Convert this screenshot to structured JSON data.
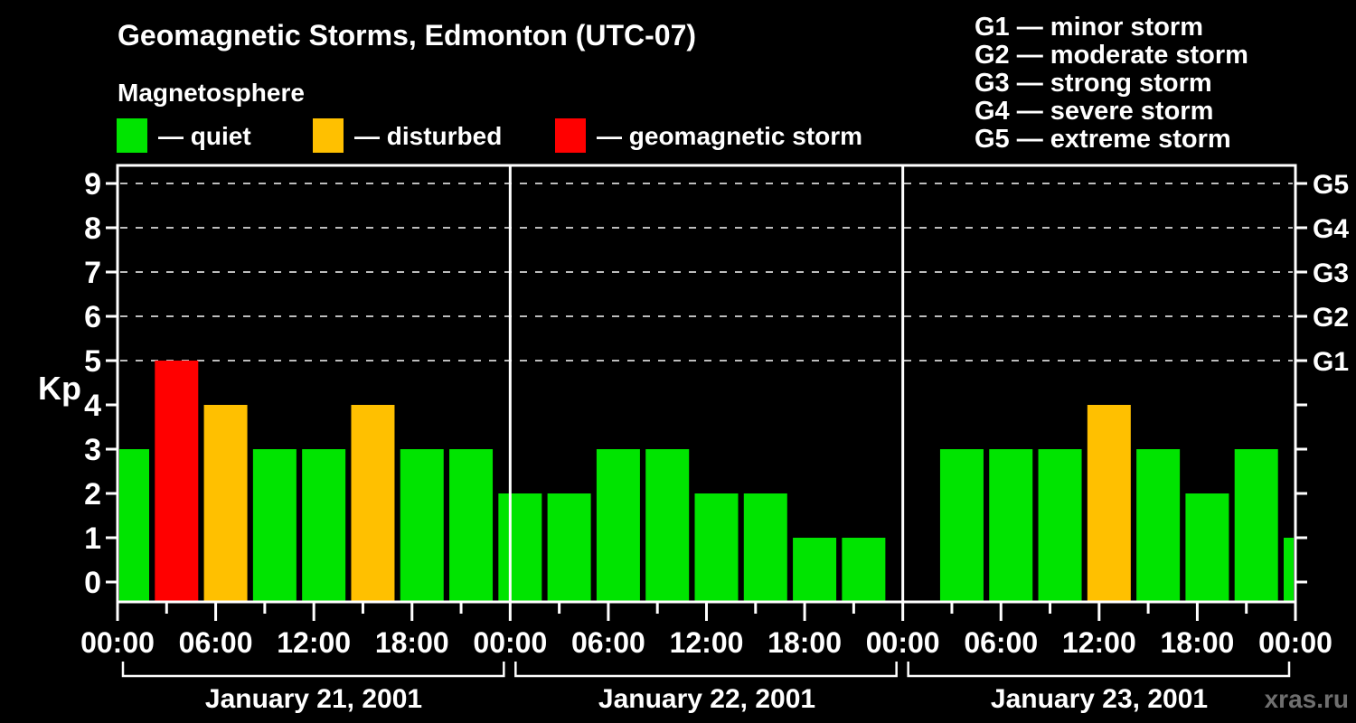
{
  "chart_data": {
    "type": "bar",
    "title": "Geomagnetic Storms, Edmonton (UTC-07)",
    "subtitle": "Magnetosphere",
    "y_axis_label": "Kp",
    "watermark": "xras.ru",
    "ylim": [
      0,
      9.5
    ],
    "y_ticks": [
      0,
      1,
      2,
      3,
      4,
      5,
      6,
      7,
      8,
      9
    ],
    "x_total_hours": 72,
    "x_tick_step_hours": 3,
    "x_label_step_hours": 6,
    "time_label_cycle": [
      "00:00",
      "06:00",
      "12:00",
      "18:00"
    ],
    "final_time_label": "00:00",
    "grid": "dashed horizontal lines at Kp 5-9",
    "legend": {
      "items": [
        {
          "label": "— quiet",
          "status": "quiet",
          "color": "#00e400"
        },
        {
          "label": "— disturbed",
          "status": "disturbed",
          "color": "#ffc000"
        },
        {
          "label": "— geomagnetic storm",
          "status": "storm",
          "color": "#ff0000"
        }
      ]
    },
    "g_scale_legend": [
      "G1 — minor storm",
      "G2 — moderate storm",
      "G3 — strong storm",
      "G4 — severe storm",
      "G5 — extreme storm"
    ],
    "g_levels": [
      {
        "kp": 5,
        "label": "G1"
      },
      {
        "kp": 6,
        "label": "G2"
      },
      {
        "kp": 7,
        "label": "G3"
      },
      {
        "kp": 8,
        "label": "G4"
      },
      {
        "kp": 9,
        "label": "G5"
      }
    ],
    "days": [
      {
        "label": "January 21, 2001",
        "start_hour": 0,
        "end_hour": 24
      },
      {
        "label": "January 22, 2001",
        "start_hour": 24,
        "end_hour": 48
      },
      {
        "label": "January 23, 2001",
        "start_hour": 48,
        "end_hour": 72
      }
    ],
    "points": [
      {
        "hour": 0,
        "kp": 3,
        "status": "quiet"
      },
      {
        "hour": 3,
        "kp": 5,
        "status": "storm"
      },
      {
        "hour": 6,
        "kp": 4,
        "status": "disturbed"
      },
      {
        "hour": 9,
        "kp": 3,
        "status": "quiet"
      },
      {
        "hour": 12,
        "kp": 3,
        "status": "quiet"
      },
      {
        "hour": 15,
        "kp": 4,
        "status": "disturbed"
      },
      {
        "hour": 18,
        "kp": 3,
        "status": "quiet"
      },
      {
        "hour": 21,
        "kp": 3,
        "status": "quiet"
      },
      {
        "hour": 24,
        "kp": 2,
        "status": "quiet"
      },
      {
        "hour": 27,
        "kp": 2,
        "status": "quiet"
      },
      {
        "hour": 30,
        "kp": 3,
        "status": "quiet"
      },
      {
        "hour": 33,
        "kp": 3,
        "status": "quiet"
      },
      {
        "hour": 36,
        "kp": 2,
        "status": "quiet"
      },
      {
        "hour": 39,
        "kp": 2,
        "status": "quiet"
      },
      {
        "hour": 42,
        "kp": 1,
        "status": "quiet"
      },
      {
        "hour": 45,
        "kp": 1,
        "status": "quiet"
      },
      {
        "hour": 51,
        "kp": 3,
        "status": "quiet"
      },
      {
        "hour": 54,
        "kp": 3,
        "status": "quiet"
      },
      {
        "hour": 57,
        "kp": 3,
        "status": "quiet"
      },
      {
        "hour": 60,
        "kp": 4,
        "status": "disturbed"
      },
      {
        "hour": 63,
        "kp": 3,
        "status": "quiet"
      },
      {
        "hour": 66,
        "kp": 2,
        "status": "quiet"
      },
      {
        "hour": 69,
        "kp": 3,
        "status": "quiet"
      },
      {
        "hour": 72,
        "kp": 1,
        "status": "quiet"
      }
    ],
    "colors": {
      "background": "#000000",
      "frame": "#ffffff",
      "grid": "#bdbdbd",
      "text": "#ffffff",
      "watermark": "#6f6f6f",
      "quiet": "#00e400",
      "disturbed": "#ffc000",
      "storm": "#ff0000"
    }
  }
}
